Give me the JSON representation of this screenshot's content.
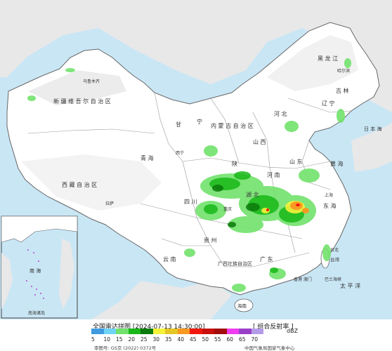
{
  "map": {
    "ocean_color": "#c9e6f5",
    "land_color": "#ffffff",
    "neighbor_land_color": "#e8e8e8",
    "border_color": "#666666",
    "snow_area_color": "#e4e4e4",
    "labels": {
      "inner_mongolia": "内 蒙 古 自 治 区",
      "heilongjiang": "黑 龙 江",
      "jilin": "吉 林",
      "liaoning": "辽 宁",
      "xinjiang": "新 疆 维 吾 尔 自 治 区",
      "tibet": "西 藏 自 治 区",
      "qinghai": "青 海",
      "gansu": "甘",
      "ningxia": "宁",
      "shaanxi": "陕",
      "shanxi": "山 西",
      "hebei": "河 北",
      "shandong": "山 东",
      "henan": "河 南",
      "sichuan": "四 川",
      "hubei": "湖 北",
      "guizhou": "贵 州",
      "yunnan": "云 南",
      "guangxi": "广西壮族自治区",
      "guangdong": "广 东",
      "hainan": "海南",
      "taiwan": "台湾",
      "east_sea": "东 海",
      "yellow_sea": "黄 海",
      "pacific": "太 平 洋",
      "japan_sea": "日 本 海",
      "taipei": "台北",
      "urumqi": "乌鲁木齐",
      "lhasa": "拉萨",
      "harbin": "哈尔滨",
      "xining": "西宁",
      "chongqing": "重庆",
      "shanghai": "上海",
      "bashi": "巴士海峡",
      "south_sea": "南 海",
      "hk_macau": "香港 澳门",
      "south_sea_islands": "南海诸岛"
    }
  },
  "legend": {
    "title": "全国雷达拼图 [2024-07-13 14:30:00]",
    "product": "[ 组合反射率 ]",
    "unit": "dBZ",
    "colors": [
      "#3f9ae0",
      "#70d4f6",
      "#72e26c",
      "#18b818",
      "#0a7a0a",
      "#f5f23a",
      "#e4c624",
      "#fa9820",
      "#f2180e",
      "#c8100c",
      "#a20c0a",
      "#f03cf0",
      "#9a40c8",
      "#b49ce8"
    ],
    "ticks": [
      "5",
      "10",
      "15",
      "20",
      "25",
      "30",
      "35",
      "40",
      "45",
      "50",
      "55",
      "60",
      "65",
      "70"
    ],
    "approval": "审图号: GS京 (2022) 0372号",
    "source": "中国气象局国家气象中心"
  }
}
